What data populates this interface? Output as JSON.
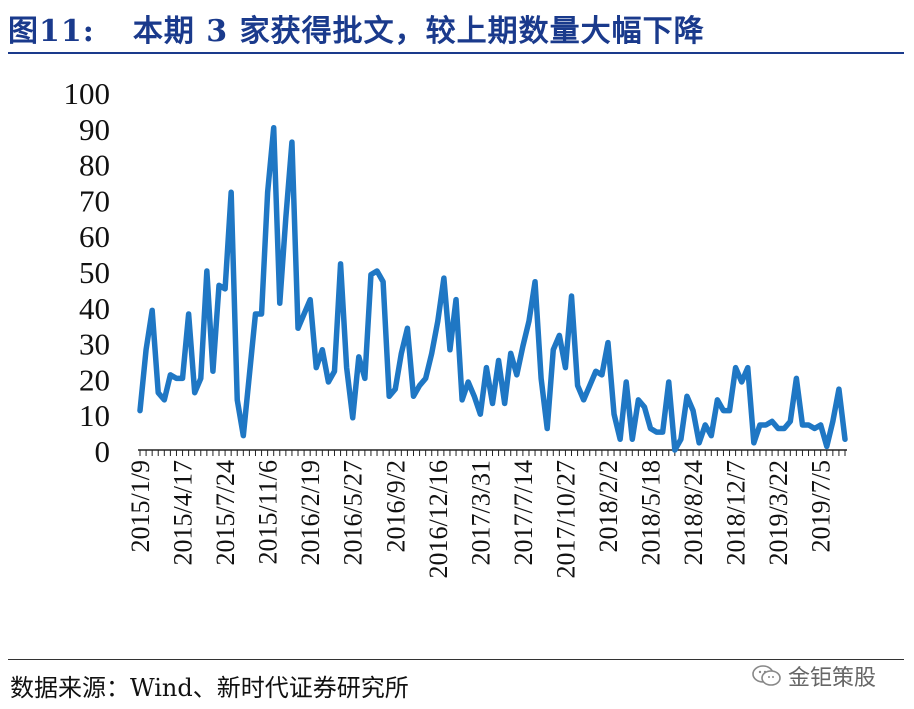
{
  "header": {
    "figure_number": "图11:",
    "title": "本期 3 家获得批文，较上期数量大幅下降"
  },
  "source": {
    "text": "数据来源：Wind、新时代证券研究所"
  },
  "watermark": {
    "text": "金钜策股",
    "icon": "wechat-icon"
  },
  "chart_data": {
    "type": "line",
    "title": "",
    "xlabel": "",
    "ylabel": "",
    "ylim": [
      0,
      100
    ],
    "yticks": [
      0,
      10,
      20,
      30,
      40,
      50,
      60,
      70,
      80,
      90,
      100
    ],
    "grid": false,
    "legend": "none",
    "color": "#1f77c4",
    "x_tick_labels": [
      "2015/1/9",
      "2015/4/17",
      "2015/7/24",
      "2015/11/6",
      "2016/2/19",
      "2016/5/27",
      "2016/9/2",
      "2016/12/16",
      "2017/3/31",
      "2017/7/14",
      "2017/10/27",
      "2018/2/2",
      "2018/5/18",
      "2018/8/24",
      "2018/12/7",
      "2019/3/22",
      "2019/7/5"
    ],
    "x_tick_positions": [
      0,
      7,
      14,
      21,
      28,
      35,
      42,
      49,
      56,
      63,
      70,
      77,
      84,
      91,
      98,
      105,
      112
    ],
    "series": [
      {
        "values": [
          11,
          28,
          39,
          16,
          14,
          21,
          20,
          20,
          38,
          16,
          20,
          50,
          22,
          46,
          45,
          72,
          14,
          4,
          21,
          38,
          38,
          72,
          90,
          41,
          65,
          86,
          34,
          38,
          42,
          23,
          28,
          19,
          22,
          52,
          23,
          9,
          26,
          20,
          49,
          50,
          47,
          15,
          17,
          27,
          34,
          15,
          18,
          20,
          27,
          36,
          48,
          28,
          42,
          14,
          19,
          15,
          10,
          23,
          13,
          25,
          13,
          27,
          21,
          29,
          36,
          47,
          20,
          6,
          28,
          32,
          23,
          43,
          18,
          14,
          18,
          22,
          21,
          30,
          10,
          3,
          19,
          3,
          14,
          12,
          6,
          5,
          5,
          19,
          0,
          3,
          15,
          11,
          2,
          7,
          4,
          14,
          11,
          11,
          23,
          19,
          23,
          2,
          7,
          7,
          8,
          6,
          6,
          8,
          20,
          7,
          7,
          6,
          7,
          1,
          8,
          17,
          3
        ]
      }
    ]
  }
}
